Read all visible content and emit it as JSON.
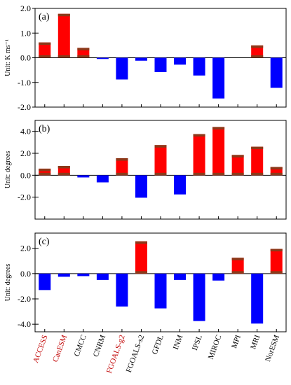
{
  "chart_data": {
    "type": "bar",
    "categories": [
      "ACCESS",
      "CanESM",
      "CMCC",
      "CNRM",
      "FGOALS-g2",
      "FGOALS-s2",
      "GFDL",
      "INM",
      "IPSL",
      "MIROC",
      "MPI",
      "MRI",
      "NorESM"
    ],
    "category_colors": [
      "#c00000",
      "#c00000",
      "#000000",
      "#000000",
      "#c00000",
      "#000000",
      "#000000",
      "#000000",
      "#000000",
      "#000000",
      "#000000",
      "#000000",
      "#000000"
    ],
    "colors": {
      "positive": "#ff0000",
      "negative": "#0000ff",
      "base": "#8b3a1a"
    },
    "panels": [
      {
        "label": "(a)",
        "ylabel": "Unit: K ms⁻¹",
        "ylim": [
          -2.0,
          2.0
        ],
        "yticks": [
          -2.0,
          -1.0,
          0.0,
          1.0,
          2.0
        ],
        "yticklabels": [
          "-2.0",
          "-1.0",
          "0.0",
          "1.0",
          "2.0"
        ],
        "values": [
          0.62,
          1.78,
          0.4,
          -0.05,
          -0.88,
          -0.12,
          -0.58,
          -0.28,
          -0.72,
          -1.65,
          0.0,
          0.5,
          -1.22
        ]
      },
      {
        "label": "(b)",
        "ylabel": "Unit: degrees",
        "ylim": [
          -4.0,
          5.0
        ],
        "yticks": [
          -2.0,
          0.0,
          2.0,
          4.0
        ],
        "yticklabels": [
          "-2.0",
          "0.0",
          "2.0",
          "4.0"
        ],
        "values": [
          0.6,
          0.85,
          -0.2,
          -0.65,
          1.55,
          -2.05,
          2.75,
          -1.75,
          3.75,
          4.4,
          1.85,
          2.6,
          0.75
        ]
      },
      {
        "label": "(c)",
        "ylabel": "Unit: degrees",
        "ylim": [
          -4.6,
          3.2
        ],
        "yticks": [
          -4.0,
          -2.0,
          0.0,
          2.0
        ],
        "yticklabels": [
          "-4.0",
          "-2.0",
          "0.0",
          "2.0"
        ],
        "values": [
          -1.3,
          -0.25,
          -0.2,
          -0.5,
          -2.6,
          2.55,
          -2.75,
          -0.5,
          -3.75,
          -0.55,
          1.25,
          -3.95,
          1.95
        ]
      }
    ]
  }
}
